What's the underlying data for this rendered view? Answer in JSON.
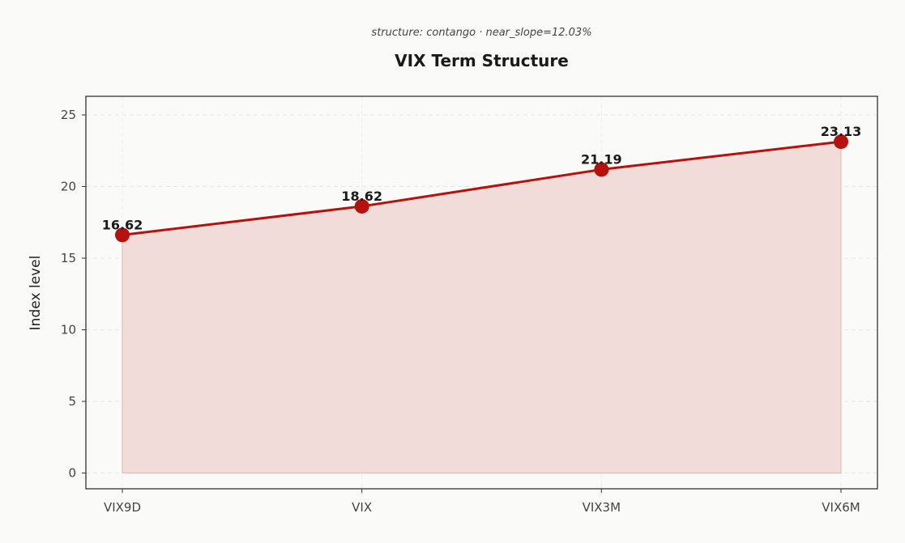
{
  "chart_data": {
    "type": "line",
    "title": "VIX Term Structure",
    "subtitle": "structure: contango · near_slope=12.03%",
    "xlabel": "",
    "ylabel": "Index level",
    "categories": [
      "VIX9D",
      "VIX",
      "VIX3M",
      "VIX6M"
    ],
    "values": [
      16.62,
      18.62,
      21.19,
      23.13
    ],
    "data_labels": [
      "16.62",
      "18.62",
      "21.19",
      "23.13"
    ],
    "yticks": [
      0,
      5,
      10,
      15,
      20,
      25
    ],
    "ylim": [
      -1.1,
      26.3
    ],
    "grid": true,
    "area_fill": true,
    "colors": {
      "line": "#b5120e",
      "fill": "#f2dcda",
      "background": "#fafaf9"
    }
  }
}
